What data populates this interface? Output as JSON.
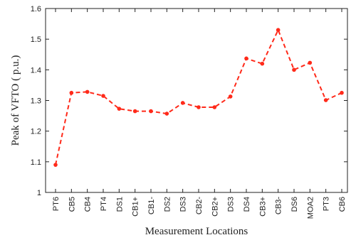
{
  "chart_data": {
    "type": "line",
    "xlabel": "Measurement Locations",
    "ylabel": "Peak of VFTO ( p.u.)",
    "ylim": [
      1,
      1.6
    ],
    "yticks": [
      "1",
      "1.1",
      "1.2",
      "1.3",
      "1.4",
      "1.5",
      "1.6"
    ],
    "categories": [
      "PT6",
      "CB5",
      "CB4",
      "PT4",
      "DS1",
      "CB1+",
      "CB1-",
      "DS2",
      "DS3",
      "CB2-",
      "CB2+",
      "DS3",
      "DS4",
      "CB3+",
      "CB3-",
      "DS6",
      "MOA2",
      "PT3",
      "CB6"
    ],
    "series": [
      {
        "values": [
          1.09,
          1.325,
          1.328,
          1.315,
          1.273,
          1.265,
          1.265,
          1.257,
          1.292,
          1.278,
          1.278,
          1.313,
          1.437,
          1.42,
          1.53,
          1.4,
          1.423,
          1.301,
          1.325
        ]
      }
    ],
    "grid": false,
    "legend": "none",
    "colors": {
      "line": "#ff2a1a",
      "axis": "#222222"
    },
    "line_style": "dashed",
    "marker": "dot"
  }
}
